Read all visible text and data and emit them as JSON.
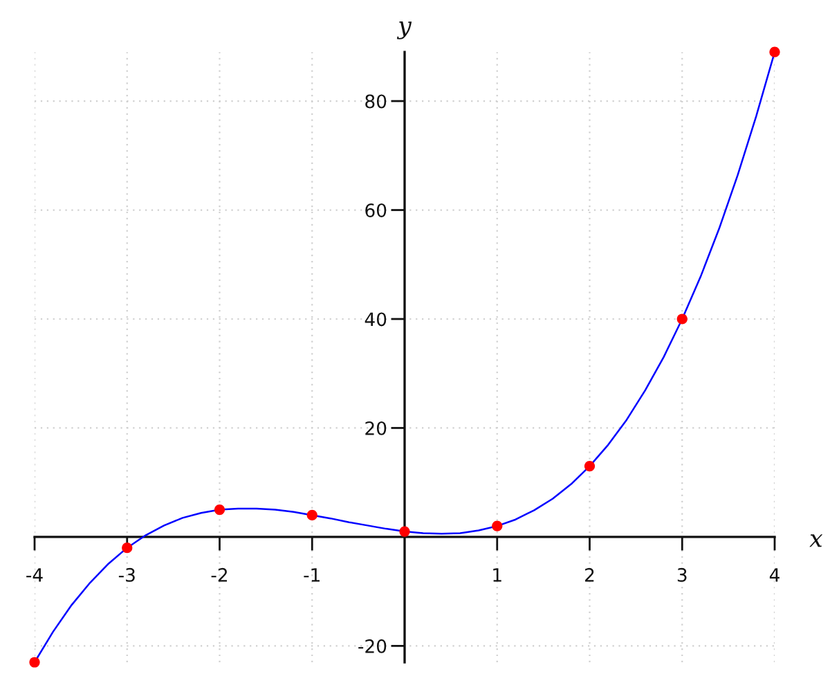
{
  "chart_data": {
    "type": "line",
    "xlabel": "x",
    "ylabel": "y",
    "xlim": [
      -4,
      4
    ],
    "ylim": [
      -23,
      89
    ],
    "xticks": [
      -4,
      -3,
      -2,
      -1,
      1,
      2,
      3,
      4
    ],
    "yticks": [
      -20,
      20,
      40,
      60,
      80
    ],
    "grid": true,
    "series": [
      {
        "color": "#0000ff",
        "line_style": "solid",
        "x": [
          -4.0,
          -3.8,
          -3.6,
          -3.4,
          -3.2,
          -3.0,
          -2.8,
          -2.6,
          -2.4,
          -2.2,
          -2.0,
          -1.8,
          -1.6,
          -1.4,
          -1.2,
          -1.0,
          -0.8,
          -0.6,
          -0.4,
          -0.2,
          0.0,
          0.2,
          0.4,
          0.6,
          0.8,
          1.0,
          1.2,
          1.4,
          1.6,
          1.8,
          2.0,
          2.2,
          2.4,
          2.6,
          2.8,
          3.0,
          3.2,
          3.4,
          3.6,
          3.8,
          4.0
        ],
        "values": [
          -23,
          -17.4,
          -12.5,
          -8.4,
          -4.9,
          -2,
          0.3,
          2.1,
          3.5,
          4.4,
          5,
          5.2,
          5.2,
          5.0,
          4.6,
          4,
          3.4,
          2.7,
          2.1,
          1.5,
          1,
          0.7,
          0.6,
          0.7,
          1.2,
          2,
          3.2,
          4.9,
          7.0,
          9.7,
          13,
          16.9,
          21.5,
          26.9,
          33.0,
          40,
          47.8,
          56.6,
          66.4,
          77.2,
          89
        ]
      },
      {
        "type": "scatter",
        "color": "#ff0000",
        "marker": "circle",
        "x": [
          -4,
          -3,
          -2,
          -1,
          0,
          1,
          2,
          3,
          4
        ],
        "values": [
          -23,
          -2,
          5,
          4,
          1,
          2,
          13,
          40,
          89
        ]
      }
    ]
  }
}
